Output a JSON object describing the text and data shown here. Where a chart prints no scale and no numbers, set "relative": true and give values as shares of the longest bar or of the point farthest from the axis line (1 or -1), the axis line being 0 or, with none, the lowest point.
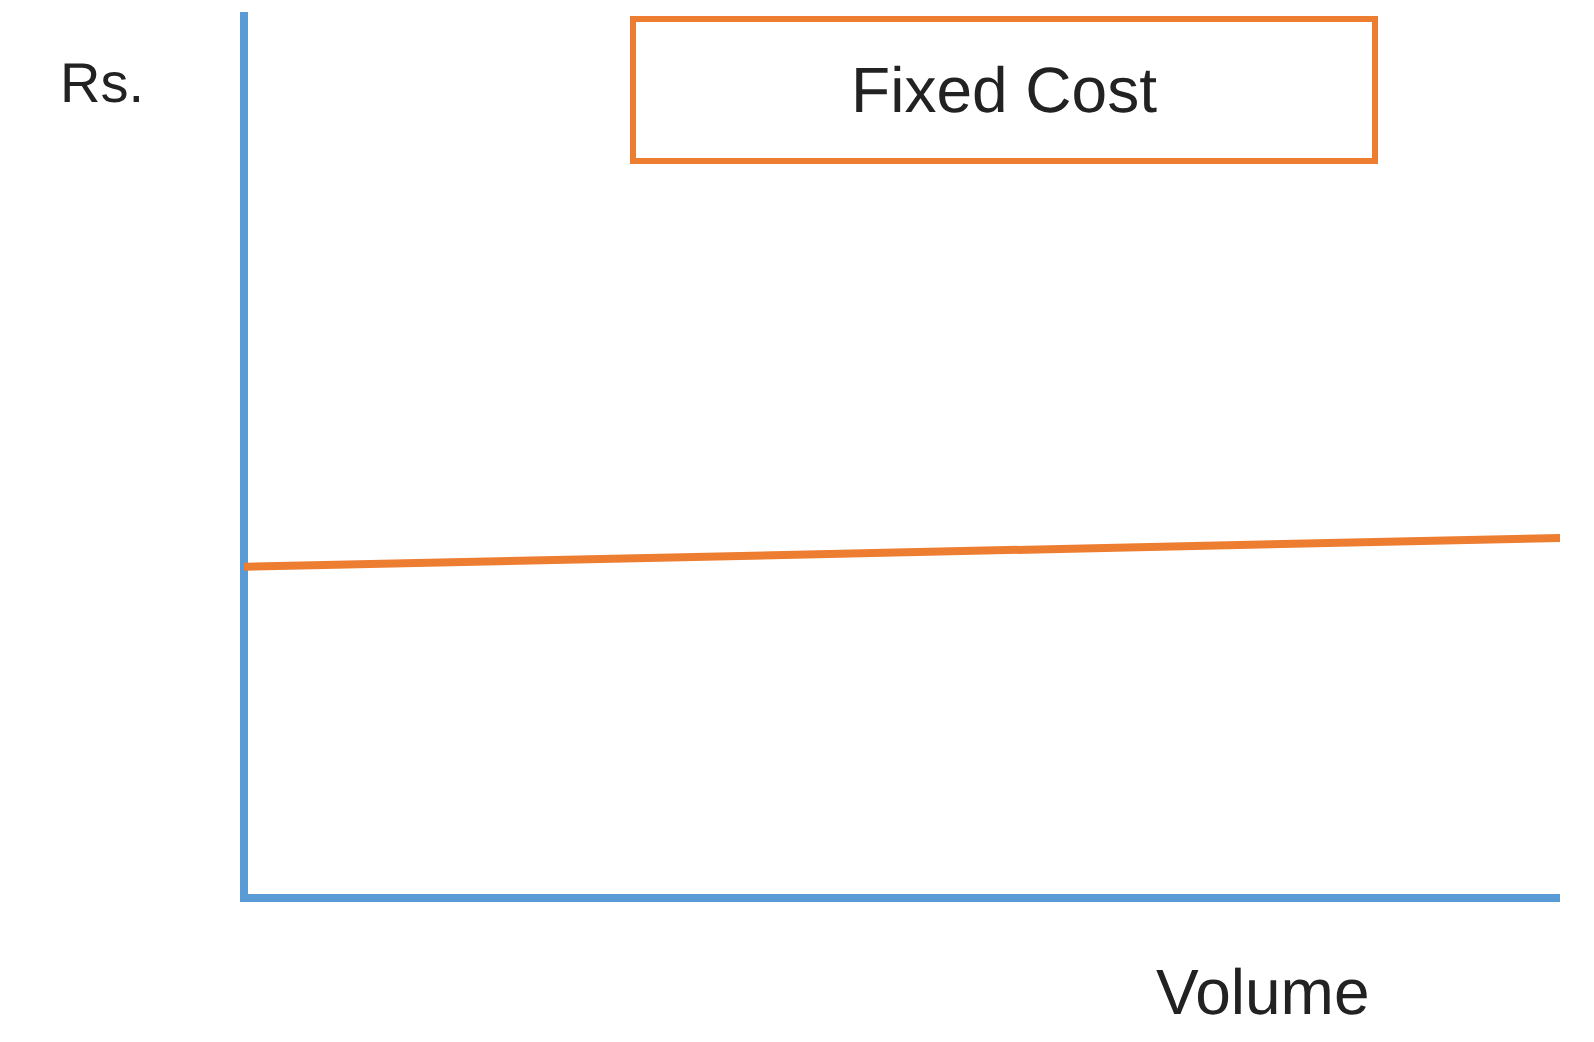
{
  "chart_data": {
    "type": "line",
    "title": "Fixed Cost",
    "xlabel": "Volume",
    "annotations": [
      "Rs."
    ],
    "relative": true,
    "marker": "none",
    "categories": [
      null,
      null
    ],
    "ref_lines": [
      {
        "axis": "y",
        "value": 0,
        "color": "#5b9bd5"
      }
    ],
    "series": [
      {
        "color": "#ed7d31",
        "values": [
          0.92,
          1
        ]
      }
    ]
  }
}
